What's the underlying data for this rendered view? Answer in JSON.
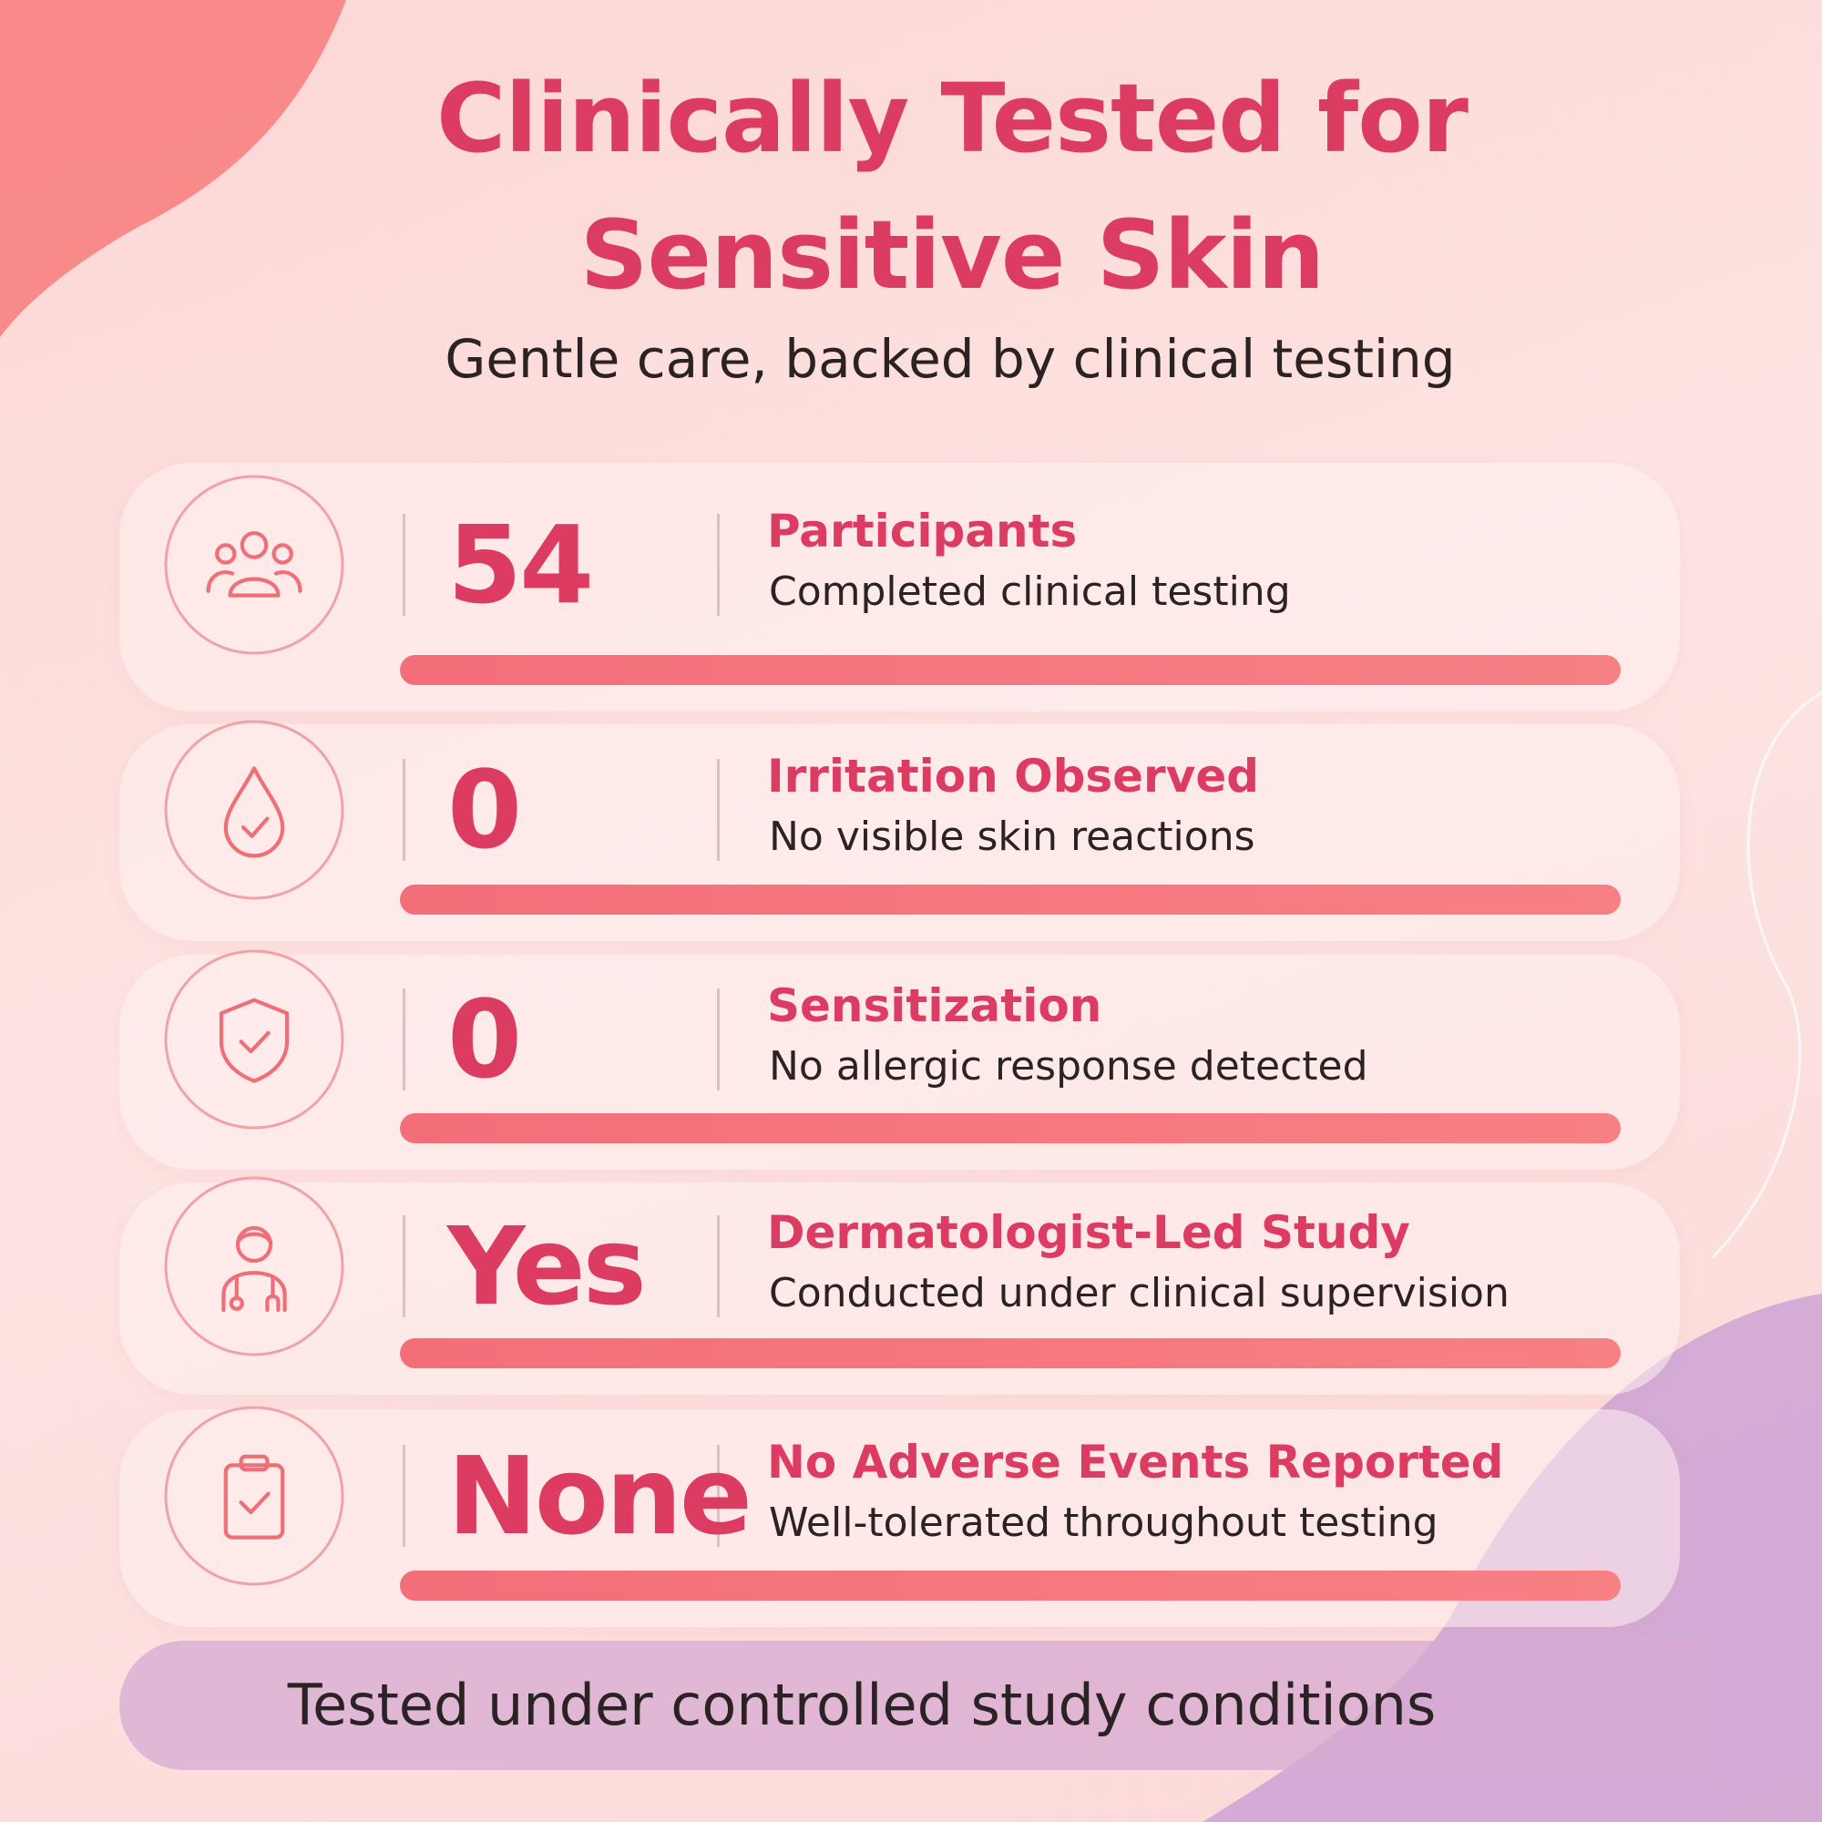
{
  "header": {
    "title": "Clinically Tested for Sensitive Skin",
    "subtitle": "Gentle care, backed by clinical testing"
  },
  "rows": [
    {
      "value": "54",
      "label": "Participants",
      "description": "Completed clinical testing"
    },
    {
      "value": "0",
      "label": "Irritation Observed",
      "description": "No visible skin reactions"
    },
    {
      "value": "0",
      "label": "Sensitization",
      "description": "No allergic response detected"
    },
    {
      "value": "Yes",
      "label": "Dermatologist-Led Study",
      "description": "Conducted under clinical supervision"
    },
    {
      "value": "None",
      "label": "No Adverse Events Reported",
      "description": "Well-tolerated throughout testing"
    }
  ],
  "footer": "Tested under controlled study conditions"
}
